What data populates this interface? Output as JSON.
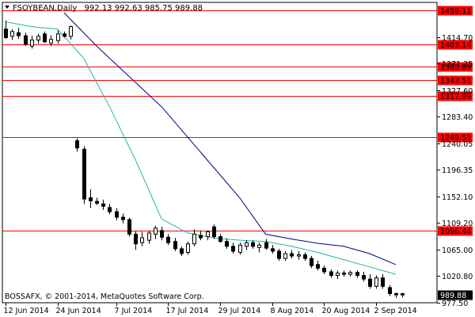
{
  "chart_data": {
    "type": "candlestick",
    "symbol": "FSOYBEAN",
    "timeframe": "Daily",
    "header_ohlc": "992.13 992.63 985.75 989.88",
    "copyright": "BOSSAFX, © 2001-2014, MetaQuotes Software Corp.",
    "current_price": "989.88",
    "ylim": [
      977.0,
      1472.0
    ],
    "y_ticks": [
      "1414.70",
      "1371.25",
      "1327.60",
      "1283.40",
      "1240.05",
      "1196.35",
      "1152.10",
      "1109.20",
      "1065.00",
      "1020.80",
      "977.50"
    ],
    "x_tick_labels": [
      {
        "label": "12 Jun 2014",
        "index": 0
      },
      {
        "label": "24 Jun 2014",
        "index": 8
      },
      {
        "label": "7 Jul 2014",
        "index": 17
      },
      {
        "label": "17 Jul 2014",
        "index": 25
      },
      {
        "label": "29 Jul 2014",
        "index": 33
      },
      {
        "label": "8 Aug 2014",
        "index": 41
      },
      {
        "label": "20 Aug 2014",
        "index": 49
      },
      {
        "label": "2 Sep 2014",
        "index": 57
      }
    ],
    "levels": [
      {
        "label": "1459.11",
        "value": 1459.11
      },
      {
        "label": "1403.14",
        "value": 1403.14
      },
      {
        "label": "1365.89",
        "value": 1365.89
      },
      {
        "label": "1343.51",
        "value": 1343.51
      },
      {
        "label": "1317.99",
        "value": 1317.99
      },
      {
        "label": "1249.51",
        "value": 1249.51
      },
      {
        "label": "1096.44",
        "value": 1096.44
      }
    ],
    "candles": [
      {
        "o": 1428,
        "h": 1442,
        "l": 1412,
        "c": 1414
      },
      {
        "o": 1416,
        "h": 1428,
        "l": 1410,
        "c": 1424
      },
      {
        "o": 1422,
        "h": 1430,
        "l": 1412,
        "c": 1417
      },
      {
        "o": 1417,
        "h": 1422,
        "l": 1400,
        "c": 1403
      },
      {
        "o": 1400,
        "h": 1417,
        "l": 1396,
        "c": 1410
      },
      {
        "o": 1410,
        "h": 1420,
        "l": 1404,
        "c": 1416
      },
      {
        "o": 1420,
        "h": 1424,
        "l": 1405,
        "c": 1407
      },
      {
        "o": 1405,
        "h": 1418,
        "l": 1400,
        "c": 1411
      },
      {
        "o": 1409,
        "h": 1426,
        "l": 1404,
        "c": 1420
      },
      {
        "o": 1420,
        "h": 1424,
        "l": 1414,
        "c": 1416
      },
      {
        "o": 1416,
        "h": 1434,
        "l": 1411,
        "c": 1432
      },
      {
        "o": 1244,
        "h": 1248,
        "l": 1226,
        "c": 1232
      },
      {
        "o": 1230,
        "h": 1235,
        "l": 1140,
        "c": 1148
      },
      {
        "o": 1150,
        "h": 1164,
        "l": 1133,
        "c": 1145
      },
      {
        "o": 1144,
        "h": 1150,
        "l": 1138,
        "c": 1141
      },
      {
        "o": 1140,
        "h": 1147,
        "l": 1130,
        "c": 1136
      },
      {
        "o": 1134,
        "h": 1140,
        "l": 1123,
        "c": 1127
      },
      {
        "o": 1127,
        "h": 1133,
        "l": 1113,
        "c": 1118
      },
      {
        "o": 1118,
        "h": 1124,
        "l": 1108,
        "c": 1114
      },
      {
        "o": 1114,
        "h": 1117,
        "l": 1086,
        "c": 1090
      },
      {
        "o": 1090,
        "h": 1095,
        "l": 1064,
        "c": 1074
      },
      {
        "o": 1076,
        "h": 1094,
        "l": 1070,
        "c": 1084
      },
      {
        "o": 1080,
        "h": 1096,
        "l": 1074,
        "c": 1092
      },
      {
        "o": 1090,
        "h": 1104,
        "l": 1082,
        "c": 1100
      },
      {
        "o": 1096,
        "h": 1102,
        "l": 1080,
        "c": 1085
      },
      {
        "o": 1085,
        "h": 1090,
        "l": 1072,
        "c": 1076
      },
      {
        "o": 1078,
        "h": 1084,
        "l": 1062,
        "c": 1066
      },
      {
        "o": 1066,
        "h": 1070,
        "l": 1054,
        "c": 1058
      },
      {
        "o": 1060,
        "h": 1078,
        "l": 1056,
        "c": 1074
      },
      {
        "o": 1074,
        "h": 1098,
        "l": 1070,
        "c": 1090
      },
      {
        "o": 1088,
        "h": 1096,
        "l": 1080,
        "c": 1084
      },
      {
        "o": 1086,
        "h": 1096,
        "l": 1080,
        "c": 1094
      },
      {
        "o": 1102,
        "h": 1106,
        "l": 1082,
        "c": 1086
      },
      {
        "o": 1086,
        "h": 1090,
        "l": 1076,
        "c": 1078
      },
      {
        "o": 1078,
        "h": 1083,
        "l": 1066,
        "c": 1070
      },
      {
        "o": 1070,
        "h": 1076,
        "l": 1058,
        "c": 1062
      },
      {
        "o": 1060,
        "h": 1076,
        "l": 1056,
        "c": 1072
      },
      {
        "o": 1070,
        "h": 1080,
        "l": 1064,
        "c": 1076
      },
      {
        "o": 1076,
        "h": 1080,
        "l": 1066,
        "c": 1070
      },
      {
        "o": 1068,
        "h": 1076,
        "l": 1060,
        "c": 1072
      },
      {
        "o": 1076,
        "h": 1082,
        "l": 1064,
        "c": 1067
      },
      {
        "o": 1066,
        "h": 1072,
        "l": 1058,
        "c": 1062
      },
      {
        "o": 1062,
        "h": 1066,
        "l": 1046,
        "c": 1050
      },
      {
        "o": 1050,
        "h": 1062,
        "l": 1046,
        "c": 1058
      },
      {
        "o": 1058,
        "h": 1064,
        "l": 1050,
        "c": 1054
      },
      {
        "o": 1054,
        "h": 1062,
        "l": 1048,
        "c": 1056
      },
      {
        "o": 1056,
        "h": 1060,
        "l": 1046,
        "c": 1050
      },
      {
        "o": 1050,
        "h": 1054,
        "l": 1034,
        "c": 1038
      },
      {
        "o": 1040,
        "h": 1046,
        "l": 1030,
        "c": 1034
      },
      {
        "o": 1034,
        "h": 1038,
        "l": 1024,
        "c": 1028
      },
      {
        "o": 1028,
        "h": 1032,
        "l": 1018,
        "c": 1022
      },
      {
        "o": 1022,
        "h": 1030,
        "l": 1016,
        "c": 1026
      },
      {
        "o": 1026,
        "h": 1030,
        "l": 1020,
        "c": 1024
      },
      {
        "o": 1024,
        "h": 1030,
        "l": 1020,
        "c": 1027
      },
      {
        "o": 1027,
        "h": 1030,
        "l": 1018,
        "c": 1022
      },
      {
        "o": 1022,
        "h": 1028,
        "l": 1012,
        "c": 1016
      },
      {
        "o": 1016,
        "h": 1024,
        "l": 1000,
        "c": 1004
      },
      {
        "o": 1004,
        "h": 1022,
        "l": 1000,
        "c": 1018
      },
      {
        "o": 1018,
        "h": 1024,
        "l": 1000,
        "c": 1004
      },
      {
        "o": 1002,
        "h": 1006,
        "l": 988,
        "c": 992
      },
      {
        "o": 992,
        "h": 994,
        "l": 985,
        "c": 990
      },
      {
        "o": 992.13,
        "h": 992.63,
        "l": 985.75,
        "c": 989.88
      }
    ],
    "ma_fast": [
      [
        0,
        1440
      ],
      [
        4,
        1432
      ],
      [
        8,
        1428
      ],
      [
        12,
        1380
      ],
      [
        16,
        1300
      ],
      [
        20,
        1212
      ],
      [
        24,
        1115
      ],
      [
        28,
        1092
      ],
      [
        32,
        1084
      ],
      [
        36,
        1080
      ],
      [
        40,
        1078
      ],
      [
        44,
        1070
      ],
      [
        48,
        1060
      ],
      [
        52,
        1048
      ],
      [
        56,
        1036
      ],
      [
        60,
        1024
      ]
    ],
    "ma_slow": [
      [
        9,
        1455
      ],
      [
        14,
        1400
      ],
      [
        18,
        1360
      ],
      [
        24,
        1300
      ],
      [
        30,
        1225
      ],
      [
        36,
        1150
      ],
      [
        40,
        1090
      ],
      [
        44,
        1082
      ],
      [
        48,
        1075
      ],
      [
        52,
        1070
      ],
      [
        56,
        1058
      ],
      [
        60,
        1040
      ]
    ],
    "colors": {
      "level_line": "#ff0000",
      "level_label_bg": "#ff0000",
      "candle": "#000000",
      "ma_fast": "#20b2aa",
      "ma_slow": "#000080",
      "axis": "#000000",
      "price_label_bg": "#000000",
      "price_label_text": "#ffffff"
    }
  }
}
